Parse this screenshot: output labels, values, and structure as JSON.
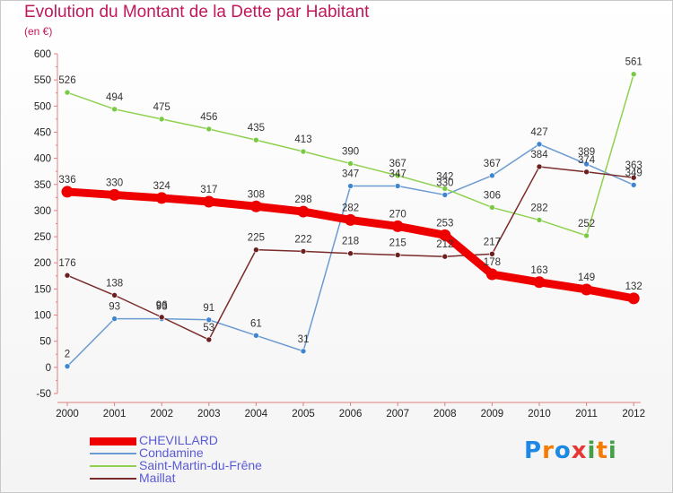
{
  "title": "Evolution du Montant de la Dette par Habitant",
  "unit": "(en €)",
  "logo": {
    "text": "Proxiti",
    "letters": [
      "P",
      "r",
      "o",
      "x",
      "i",
      "t",
      "i"
    ],
    "colors": [
      "#1e88e5",
      "#f57c00",
      "#1e88e5",
      "#e53935",
      "#43a047",
      "#f57c00",
      "#43a047"
    ]
  },
  "chart_data": {
    "type": "line",
    "title": "Evolution du Montant de la Dette par Habitant",
    "xlabel": "",
    "ylabel": "(en €)",
    "ylim": [
      -50,
      600
    ],
    "ytick_step": 50,
    "grid": false,
    "legend_position": "bottom-left",
    "x": [
      "2000",
      "2001",
      "2002",
      "2003",
      "2004",
      "2005",
      "2006",
      "2007",
      "2008",
      "2009",
      "2010",
      "2011",
      "2012"
    ],
    "series": [
      {
        "name": "CHEVILLARD",
        "color": "#ee0000",
        "emphasis": true,
        "values": [
          336,
          330,
          324,
          317,
          308,
          298,
          282,
          270,
          253,
          178,
          163,
          149,
          132
        ],
        "labels": [
          "336",
          "330",
          "324",
          "317",
          "308",
          "298",
          "282",
          "270",
          "253",
          "178",
          "163",
          "149",
          "132"
        ]
      },
      {
        "name": "Condamine",
        "color": "#6b9bd1",
        "marker": "#3f86d0",
        "values": [
          2,
          93,
          93,
          91,
          61,
          31,
          347,
          347,
          330,
          367,
          427,
          389,
          349
        ],
        "labels": [
          "2",
          "93",
          "93",
          "91",
          "61",
          "31",
          "347",
          "347",
          "330",
          "367",
          "427",
          "389",
          "349"
        ]
      },
      {
        "name": "Saint-Martin-du-Frêne",
        "color": "#8fd14f",
        "marker": "#7ac943",
        "values": [
          526,
          494,
          475,
          456,
          435,
          413,
          390,
          367,
          342,
          306,
          282,
          252,
          561
        ],
        "labels": [
          "526",
          "494",
          "475",
          "456",
          "435",
          "413",
          "390",
          "367",
          "342",
          "306",
          "282",
          "252",
          "561"
        ]
      },
      {
        "name": "Maillat",
        "color": "#7a2a2a",
        "marker": "#6b1f1f",
        "values": [
          176,
          138,
          96,
          53,
          225,
          222,
          218,
          215,
          212,
          217,
          384,
          374,
          363
        ],
        "labels": [
          "176",
          "138",
          "96",
          "53",
          "225",
          "222",
          "218",
          "215",
          "212",
          "217",
          "384",
          "374",
          "363"
        ]
      }
    ]
  }
}
